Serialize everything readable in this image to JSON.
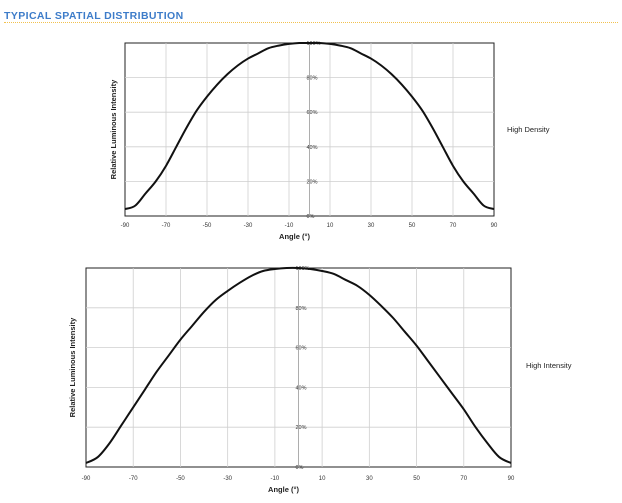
{
  "header": {
    "title": "TYPICAL SPATIAL DISTRIBUTION"
  },
  "chart_data": [
    {
      "type": "line",
      "label": "High Density",
      "xlabel": "Angle (°)",
      "ylabel": "Relative Luminous Intensity",
      "xlim": [
        -90,
        90
      ],
      "ylim": [
        0,
        100
      ],
      "xticks": [
        -90,
        -70,
        -50,
        -30,
        -10,
        10,
        30,
        50,
        70,
        90
      ],
      "yticks": [
        "0%",
        "20%",
        "40%",
        "60%",
        "80%",
        "100%"
      ],
      "grid": true,
      "series": [
        {
          "x": [
            -90,
            -85,
            -80,
            -75,
            -70,
            -65,
            -60,
            -55,
            -50,
            -45,
            -40,
            -35,
            -30,
            -25,
            -20,
            -15,
            -10,
            -5,
            0,
            5,
            10,
            15,
            20,
            25,
            30,
            35,
            40,
            45,
            50,
            55,
            60,
            65,
            70,
            75,
            80,
            85,
            90
          ],
          "y": [
            4,
            6,
            13,
            20,
            29,
            40,
            51,
            61,
            69,
            76,
            82,
            87,
            91,
            94,
            97,
            98.5,
            99.5,
            100,
            100,
            100,
            99.5,
            98.5,
            97,
            94,
            91,
            87,
            82,
            76,
            69,
            61,
            51,
            40,
            29,
            20,
            13,
            6,
            4
          ]
        }
      ]
    },
    {
      "type": "line",
      "label": "High Intensity",
      "xlabel": "Angle (°)",
      "ylabel": "Relative Luminous Intensity",
      "xlim": [
        -90,
        90
      ],
      "ylim": [
        0,
        100
      ],
      "xticks": [
        -90,
        -70,
        -50,
        -30,
        -10,
        10,
        30,
        50,
        70,
        90
      ],
      "yticks": [
        "0%",
        "20%",
        "40%",
        "60%",
        "80%",
        "100%"
      ],
      "grid": true,
      "series": [
        {
          "x": [
            -90,
            -85,
            -80,
            -75,
            -70,
            -65,
            -60,
            -55,
            -50,
            -45,
            -40,
            -35,
            -30,
            -25,
            -20,
            -15,
            -10,
            -5,
            0,
            5,
            10,
            15,
            20,
            25,
            30,
            35,
            40,
            45,
            50,
            55,
            60,
            65,
            70,
            75,
            80,
            85,
            90
          ],
          "y": [
            2,
            5,
            12,
            21,
            30,
            39,
            48,
            56,
            64,
            71,
            78,
            84,
            88.5,
            92.5,
            96,
            98.5,
            99.5,
            100,
            100,
            99.5,
            98.5,
            97,
            94,
            91,
            86.5,
            81,
            75,
            68,
            61,
            53,
            45,
            37,
            29,
            20,
            12,
            5,
            2
          ]
        }
      ]
    }
  ]
}
